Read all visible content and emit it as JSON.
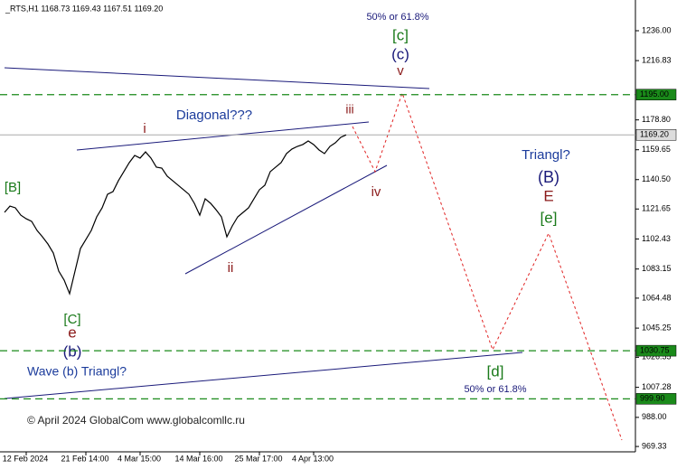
{
  "chart_data": {
    "type": "line",
    "header": "_RTS,H1  1168.73 1169.43 1167.51 1169.20",
    "copyright": "© April 2024 GlobalCom www.globalcomllc.ru",
    "categories": [
      null,
      null,
      null,
      null,
      "12 Feb 2024",
      null,
      null,
      null,
      null,
      null,
      null,
      null,
      null,
      null,
      null,
      "21 Feb 14:00",
      null,
      null,
      null,
      null,
      null,
      null,
      null,
      null,
      null,
      "4 Mar 15:00",
      null,
      null,
      null,
      null,
      null,
      null,
      null,
      null,
      null,
      null,
      "14 Mar 16:00",
      null,
      null,
      null,
      null,
      null,
      null,
      null,
      null,
      null,
      null,
      "25 Mar 17:00",
      null,
      null,
      null,
      null,
      null,
      null,
      null,
      null,
      null,
      "4 Apr 13:00",
      null,
      null,
      null,
      null,
      null,
      null
    ],
    "series": [
      {
        "name": "RTS",
        "color": "#000000",
        "values": [
          1119.5,
          1123.5,
          1122.4,
          1117.7,
          1115.4,
          1113.7,
          1107.9,
          1103.8,
          1099.2,
          1093.4,
          1081.8,
          1076,
          1067.3,
          1081.8,
          1096.3,
          1102.1,
          1107.9,
          1116.6,
          1122.4,
          1131.1,
          1132.8,
          1139.8,
          1145.6,
          1151.4,
          1156,
          1154.3,
          1158.3,
          1154.3,
          1148.5,
          1147.9,
          1142.7,
          1139.8,
          1136.9,
          1134,
          1131.1,
          1125.3,
          1117.7,
          1128.2,
          1125.3,
          1121.2,
          1116.6,
          1103.8,
          1110.8,
          1116.6,
          1119.5,
          1122.4,
          1128.2,
          1134,
          1136.9,
          1145.6,
          1148.5,
          1151.4,
          1157.2,
          1160.1,
          1161.8,
          1163,
          1165.3,
          1163,
          1159.5,
          1157.2,
          1161.8,
          1164.1,
          1167.6,
          1169.2
        ]
      }
    ],
    "ylim": [
      965.9,
      1255.7
    ],
    "yticks": [
      {
        "value": 1236,
        "label": "1236.00"
      },
      1216.83,
      {
        "value": 1178.8,
        "label": "1178.80"
      },
      1159.65,
      {
        "value": 1140.5,
        "label": "1140.50"
      },
      1121.65,
      1102.43,
      1083.15,
      1064.48,
      1045.25,
      1026.55,
      1007.28,
      {
        "value": 988,
        "label": "988.00"
      },
      969.33
    ],
    "levels": [
      {
        "value": 1195,
        "label": "1195.00"
      },
      {
        "value": 1169.2,
        "label": "1169.20"
      },
      {
        "value": 1030.75,
        "label": "1030.75"
      },
      {
        "value": 999.9,
        "label": "999.90"
      }
    ],
    "annotations": [
      "50% or 61.8%",
      "[c]",
      "(c)",
      "v",
      "Diagonal???",
      "i",
      "iii",
      "iv",
      "ii",
      "[B]",
      "[C]",
      "e",
      "(b)",
      "Wave (b) Triangl?",
      "Triangl?",
      "(B)",
      "E",
      "[e]",
      "[d]",
      "50% or 61.8%"
    ]
  }
}
